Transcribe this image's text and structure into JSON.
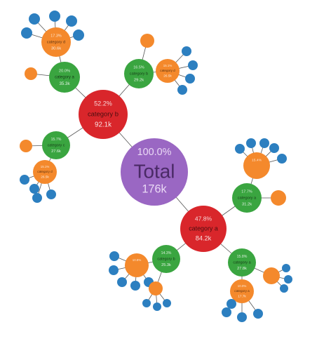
{
  "colors": {
    "root": "#9a67c3",
    "level1": "#d9262b",
    "level2": "#3aa540",
    "level3": "#f4892c",
    "level4": "#2c7fc0",
    "root_text": "#4a2a66",
    "root_pct": "#ead9f5"
  },
  "tree": {
    "pct": "100.0%",
    "name": "Total",
    "value": "176k",
    "children": [
      {
        "pct": "52.2%",
        "name": "category b",
        "value": "92.1k",
        "children": [
          {
            "pct": "20.0%",
            "name": "category a",
            "value": "35.3k",
            "children": [
              {
                "pct": "17.3%",
                "name": "category d",
                "value": "30.6k",
                "children": [
                  {
                    "pct": "",
                    "name": "",
                    "value": ""
                  },
                  {
                    "pct": "",
                    "name": "",
                    "value": ""
                  },
                  {
                    "pct": "",
                    "name": "",
                    "value": ""
                  },
                  {
                    "pct": "",
                    "name": "",
                    "value": ""
                  },
                  {
                    "pct": "",
                    "name": "",
                    "value": ""
                  }
                ]
              },
              {
                "pct": "",
                "name": "",
                "value": "",
                "children": []
              }
            ]
          },
          {
            "pct": "16.5%",
            "name": "category b",
            "value": "29.2k",
            "children": [
              {
                "pct": "15.1%",
                "name": "category d",
                "value": "26.5k",
                "children": [
                  {
                    "pct": "",
                    "name": "",
                    "value": ""
                  },
                  {
                    "pct": "",
                    "name": "",
                    "value": ""
                  },
                  {
                    "pct": "",
                    "name": "",
                    "value": ""
                  },
                  {
                    "pct": "",
                    "name": "",
                    "value": ""
                  }
                ]
              },
              {
                "pct": "",
                "name": "",
                "value": "",
                "children": []
              }
            ]
          },
          {
            "pct": "15.7%",
            "name": "category c",
            "value": "27.6k",
            "children": [
              {
                "pct": "15.1%",
                "name": "category d",
                "value": "26.5k",
                "children": [
                  {
                    "pct": "",
                    "name": "",
                    "value": ""
                  },
                  {
                    "pct": "",
                    "name": "",
                    "value": ""
                  },
                  {
                    "pct": "",
                    "name": "",
                    "value": ""
                  },
                  {
                    "pct": "",
                    "name": "",
                    "value": ""
                  }
                ]
              },
              {
                "pct": "",
                "name": "",
                "value": "",
                "children": []
              }
            ]
          }
        ]
      },
      {
        "pct": "47.8%",
        "name": "category a",
        "value": "84.2k",
        "children": [
          {
            "pct": "17.7%",
            "name": "category a",
            "value": "31.2k",
            "children": [
              {
                "pct": "15.4%",
                "name": "",
                "value": "",
                "children": [
                  {
                    "pct": "",
                    "name": "",
                    "value": ""
                  },
                  {
                    "pct": "",
                    "name": "",
                    "value": ""
                  },
                  {
                    "pct": "",
                    "name": "",
                    "value": ""
                  },
                  {
                    "pct": "",
                    "name": "",
                    "value": ""
                  },
                  {
                    "pct": "",
                    "name": "",
                    "value": ""
                  }
                ]
              },
              {
                "pct": "",
                "name": "",
                "value": "",
                "children": []
              }
            ]
          },
          {
            "pct": "15.8%",
            "name": "category a",
            "value": "27.8k",
            "children": [
              {
                "pct": "",
                "name": "",
                "value": "",
                "children": [
                  {
                    "pct": "",
                    "name": "",
                    "value": ""
                  },
                  {
                    "pct": "",
                    "name": "",
                    "value": ""
                  },
                  {
                    "pct": "",
                    "name": "",
                    "value": ""
                  }
                ]
              },
              {
                "pct": "10.0%",
                "name": "category a",
                "value": "17.7k",
                "children": [
                  {
                    "pct": "",
                    "name": "",
                    "value": ""
                  },
                  {
                    "pct": "",
                    "name": "",
                    "value": ""
                  },
                  {
                    "pct": "",
                    "name": "",
                    "value": ""
                  },
                  {
                    "pct": "",
                    "name": "",
                    "value": ""
                  }
                ]
              }
            ]
          },
          {
            "pct": "14.3%",
            "name": "category b",
            "value": "25.3k",
            "children": [
              {
                "pct": "10.8%",
                "name": "",
                "value": "",
                "children": [
                  {
                    "pct": "",
                    "name": "",
                    "value": ""
                  },
                  {
                    "pct": "",
                    "name": "",
                    "value": ""
                  },
                  {
                    "pct": "",
                    "name": "",
                    "value": ""
                  },
                  {
                    "pct": "",
                    "name": "",
                    "value": ""
                  },
                  {
                    "pct": "",
                    "name": "",
                    "value": ""
                  }
                ]
              },
              {
                "pct": "",
                "name": "",
                "value": "",
                "children": [
                  {
                    "pct": "",
                    "name": "",
                    "value": ""
                  },
                  {
                    "pct": "",
                    "name": "",
                    "value": ""
                  },
                  {
                    "pct": "",
                    "name": "",
                    "value": ""
                  }
                ]
              }
            ]
          }
        ]
      }
    ]
  }
}
